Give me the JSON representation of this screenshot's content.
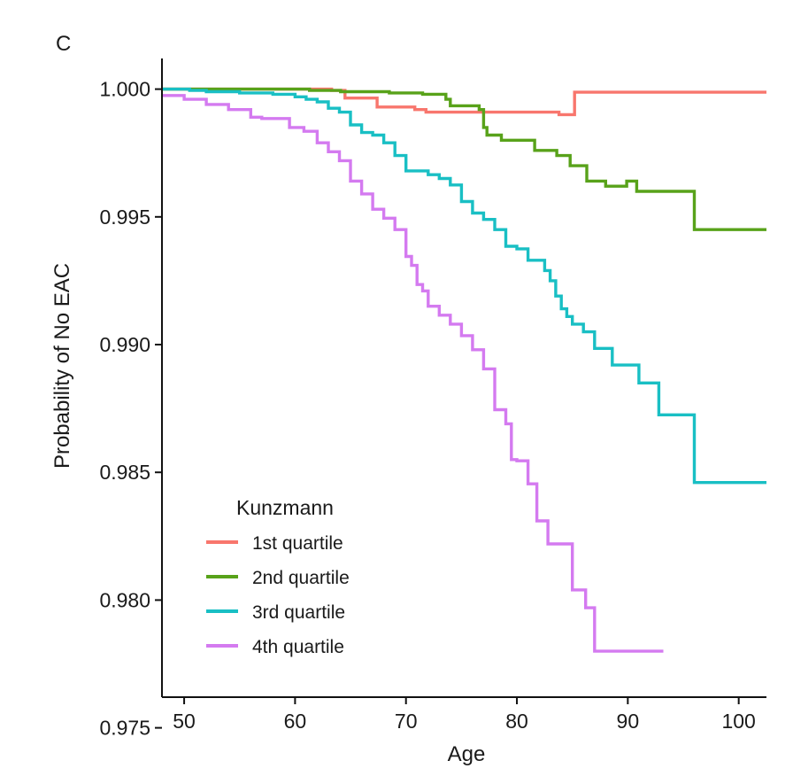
{
  "panel_label": "C",
  "chart_data": {
    "type": "line",
    "title": "",
    "xlabel": "Age",
    "ylabel": "Probability of No EAC",
    "xlim": [
      48,
      102.5
    ],
    "ylim": [
      0.9762,
      1.0012
    ],
    "x_ticks": [
      50,
      60,
      70,
      80,
      90,
      100
    ],
    "y_ticks": [
      1.0,
      0.995,
      0.99,
      0.985,
      0.98,
      0.975
    ],
    "x_tick_labels": [
      "50",
      "60",
      "70",
      "80",
      "90",
      "100"
    ],
    "y_tick_labels": [
      "1.000",
      "0.995",
      "0.990",
      "0.985",
      "0.980",
      "0.975"
    ],
    "grid": false,
    "legend": {
      "title": "Kunzmann",
      "position": "bottom-left"
    },
    "step": true,
    "series": [
      {
        "name": "1st quartile",
        "color": "#F8766D",
        "points": [
          [
            48,
            1.0
          ],
          [
            63.3,
            0.99995
          ],
          [
            64.5,
            0.99965
          ],
          [
            67.4,
            0.9993
          ],
          [
            70.8,
            0.9992
          ],
          [
            71.8,
            0.9991
          ],
          [
            76.5,
            0.9991
          ],
          [
            80.2,
            0.9991
          ],
          [
            83.8,
            0.999
          ],
          [
            85.2,
            0.99988
          ],
          [
            102.5,
            0.99988
          ]
        ]
      },
      {
        "name": "2nd quartile",
        "color": "#58A21A",
        "points": [
          [
            48,
            1.0
          ],
          [
            61.3,
            0.99995
          ],
          [
            64.1,
            0.9999
          ],
          [
            68.5,
            0.99985
          ],
          [
            71.5,
            0.9998
          ],
          [
            73.6,
            0.9996
          ],
          [
            74.0,
            0.99935
          ],
          [
            76.6,
            0.9992
          ],
          [
            77.0,
            0.9985
          ],
          [
            77.3,
            0.9982
          ],
          [
            78.6,
            0.998
          ],
          [
            81.6,
            0.9976
          ],
          [
            83.6,
            0.9974
          ],
          [
            84.8,
            0.997
          ],
          [
            86.3,
            0.9964
          ],
          [
            88.0,
            0.9962
          ],
          [
            89.9,
            0.9964
          ],
          [
            90.8,
            0.996
          ],
          [
            96.0,
            0.9945
          ],
          [
            102.5,
            0.9945
          ]
        ]
      },
      {
        "name": "3rd quartile",
        "color": "#19BFC4",
        "points": [
          [
            48,
            1.0
          ],
          [
            49.5,
            1.0
          ],
          [
            50.5,
            0.99995
          ],
          [
            52.0,
            0.9999
          ],
          [
            55.0,
            0.99985
          ],
          [
            58.0,
            0.9998
          ],
          [
            60.0,
            0.9997
          ],
          [
            61.0,
            0.9996
          ],
          [
            62.0,
            0.9995
          ],
          [
            63.0,
            0.99925
          ],
          [
            64.0,
            0.9991
          ],
          [
            65.0,
            0.9986
          ],
          [
            66.0,
            0.9983
          ],
          [
            67.0,
            0.9982
          ],
          [
            68.0,
            0.9979
          ],
          [
            69.0,
            0.9974
          ],
          [
            70.0,
            0.9968
          ],
          [
            71.0,
            0.9968
          ],
          [
            72.0,
            0.99665
          ],
          [
            73.0,
            0.9965
          ],
          [
            74.0,
            0.99625
          ],
          [
            75.0,
            0.9956
          ],
          [
            76.0,
            0.99515
          ],
          [
            77.0,
            0.9949
          ],
          [
            78.0,
            0.9945
          ],
          [
            79.0,
            0.99385
          ],
          [
            80.0,
            0.99375
          ],
          [
            81.0,
            0.9933
          ],
          [
            82.0,
            0.9933
          ],
          [
            82.5,
            0.9929
          ],
          [
            83.0,
            0.9925
          ],
          [
            83.5,
            0.9919
          ],
          [
            84.0,
            0.9914
          ],
          [
            84.5,
            0.9911
          ],
          [
            85.0,
            0.9908
          ],
          [
            86.0,
            0.9905
          ],
          [
            87.0,
            0.98985
          ],
          [
            88.3,
            0.98985
          ],
          [
            88.6,
            0.9892
          ],
          [
            91.0,
            0.9885
          ],
          [
            92.8,
            0.98725
          ],
          [
            96.0,
            0.9846
          ],
          [
            102.5,
            0.9846
          ]
        ]
      },
      {
        "name": "4th quartile",
        "color": "#D47AF0",
        "points": [
          [
            48,
            0.99975
          ],
          [
            50.0,
            0.9996
          ],
          [
            52.0,
            0.9994
          ],
          [
            54.0,
            0.9992
          ],
          [
            56.0,
            0.9989
          ],
          [
            57.0,
            0.99885
          ],
          [
            59.5,
            0.9985
          ],
          [
            60.8,
            0.99835
          ],
          [
            62.0,
            0.9979
          ],
          [
            63.0,
            0.99755
          ],
          [
            64.0,
            0.9972
          ],
          [
            65.0,
            0.9964
          ],
          [
            66.0,
            0.9959
          ],
          [
            67.0,
            0.9953
          ],
          [
            68.0,
            0.99495
          ],
          [
            69.0,
            0.9945
          ],
          [
            70.0,
            0.99345
          ],
          [
            70.5,
            0.9931
          ],
          [
            71.0,
            0.99235
          ],
          [
            71.5,
            0.9921
          ],
          [
            72.0,
            0.9915
          ],
          [
            73.0,
            0.99115
          ],
          [
            74.0,
            0.9908
          ],
          [
            75.0,
            0.99035
          ],
          [
            76.0,
            0.9898
          ],
          [
            77.0,
            0.98905
          ],
          [
            78.0,
            0.98745
          ],
          [
            79.0,
            0.9869
          ],
          [
            79.5,
            0.9855
          ],
          [
            80.0,
            0.98545
          ],
          [
            81.0,
            0.98455
          ],
          [
            81.8,
            0.9831
          ],
          [
            82.8,
            0.9822
          ],
          [
            85.0,
            0.9804
          ],
          [
            86.2,
            0.9797
          ],
          [
            87.0,
            0.978
          ],
          [
            93.2,
            0.978
          ]
        ]
      }
    ]
  }
}
